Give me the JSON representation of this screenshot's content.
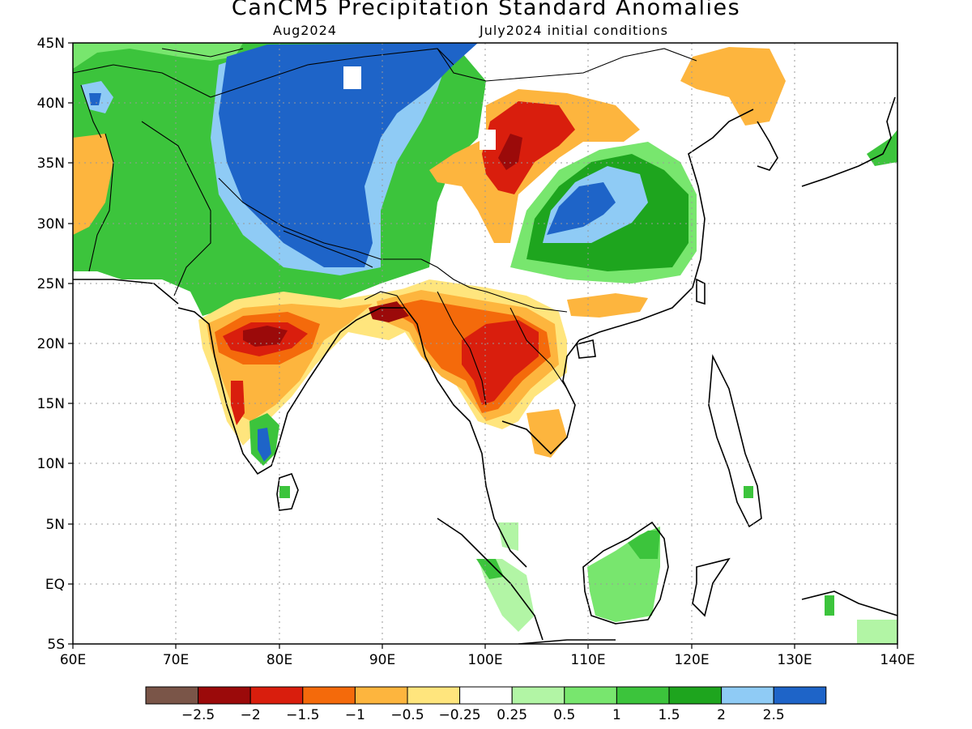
{
  "title": "CanCM5 Precipitation Standard Anomalies",
  "subtitle_left": "Aug2024",
  "subtitle_right": "July2024 initial conditions",
  "map": {
    "lon_range": [
      60,
      140
    ],
    "lat_range": [
      -5,
      45
    ],
    "lon_ticks": [
      "60E",
      "70E",
      "80E",
      "90E",
      "100E",
      "110E",
      "120E",
      "130E",
      "140E"
    ],
    "lat_ticks": [
      "45N",
      "40N",
      "35N",
      "30N",
      "25N",
      "20N",
      "15N",
      "10N",
      "5N",
      "EQ",
      "5S"
    ]
  },
  "colorbar": {
    "colors": [
      "#7a5548",
      "#9b0a0a",
      "#d91e0d",
      "#f46a0b",
      "#fdb53e",
      "#ffe57d",
      "#ffffff",
      "#b2f5a5",
      "#78e66e",
      "#3cc43c",
      "#1ea51e",
      "#8fcbf5",
      "#1e64c8"
    ],
    "labels": [
      "−2.5",
      "−2",
      "−1.5",
      "−1",
      "−0.5",
      "−0.25",
      "0.25",
      "0.5",
      "1",
      "1.5",
      "2",
      "2.5"
    ]
  },
  "regions": [
    {
      "name": "tibet-strong-positive",
      "level": 2.5,
      "color": "#1e64c8"
    },
    {
      "name": "central-china-positive",
      "level": 2.5,
      "color": "#1e64c8"
    },
    {
      "name": "central-india-negative",
      "level": -2,
      "color": "#9b0a0a"
    },
    {
      "name": "indochina-negative",
      "level": -2,
      "color": "#9b0a0a"
    },
    {
      "name": "north-china-negative",
      "level": -2,
      "color": "#9b0a0a"
    },
    {
      "name": "borneo-positive",
      "level": 0.5,
      "color": "#78e66e"
    }
  ]
}
